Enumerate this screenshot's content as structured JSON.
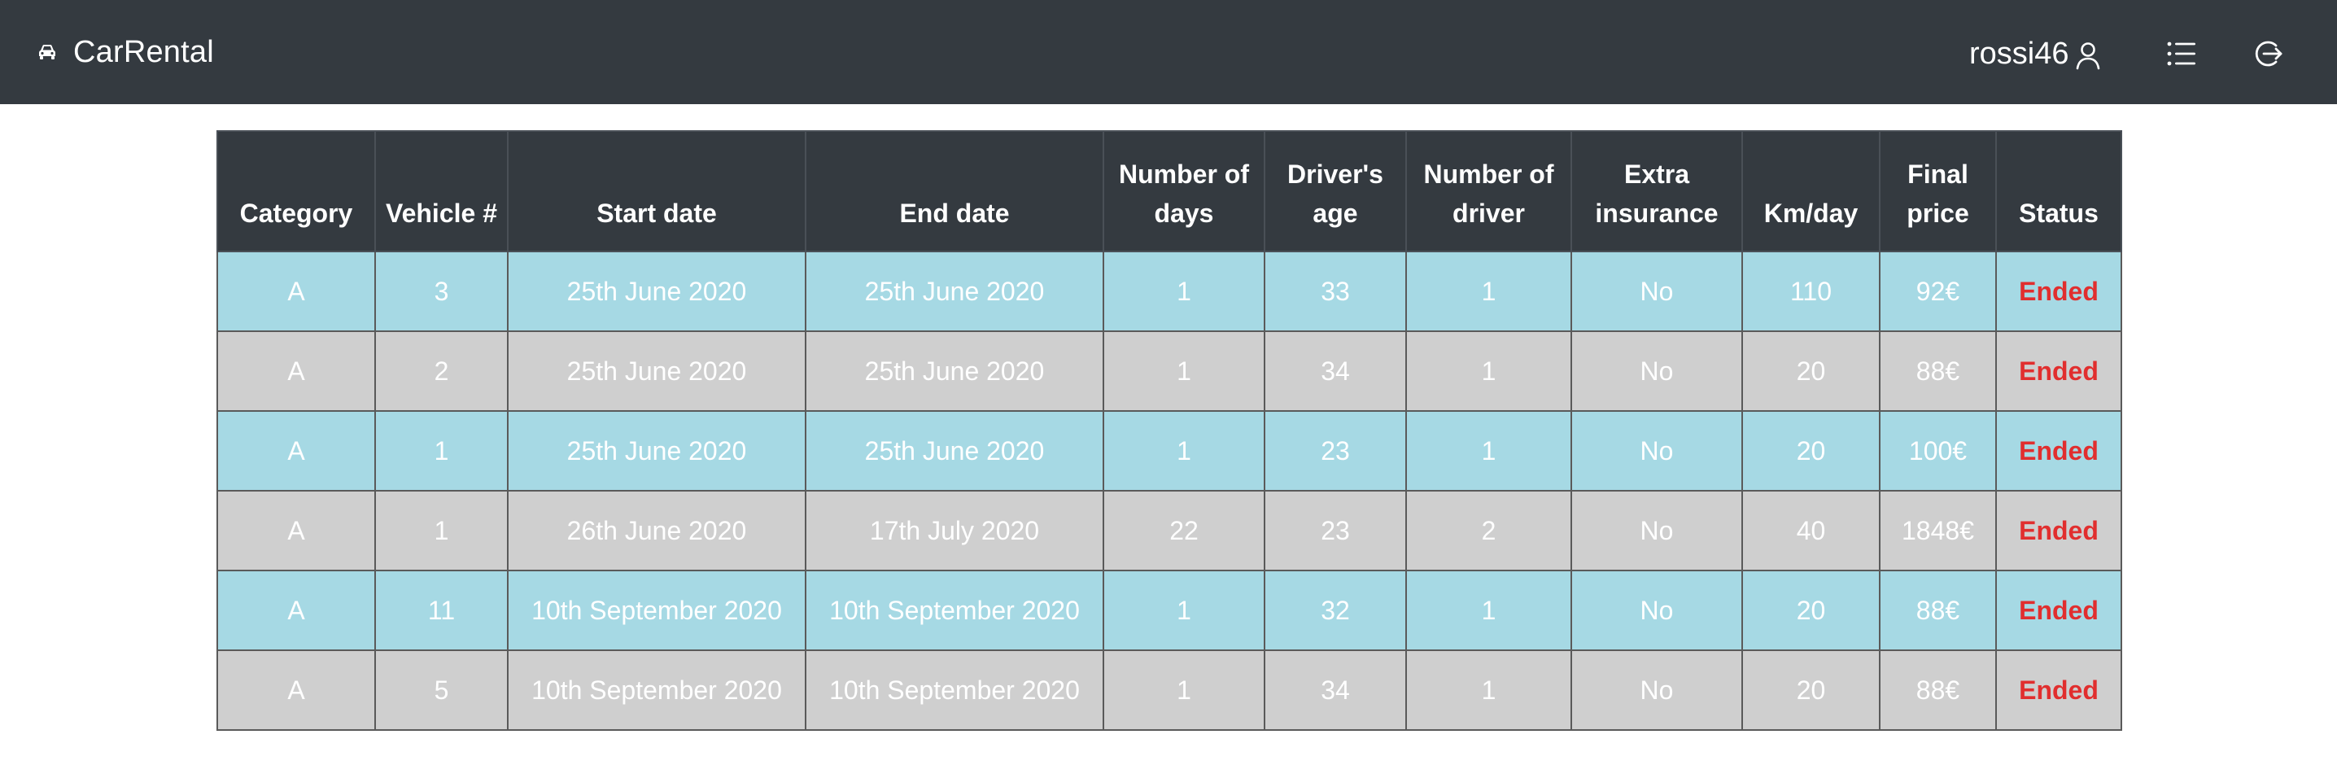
{
  "header": {
    "brand": "CarRental",
    "username": "rossi46",
    "brand_icon": "car-icon",
    "user_icon": "user-icon",
    "list_icon": "list-icon",
    "logout_icon": "logout-icon",
    "background_color": "#343a40"
  },
  "table": {
    "columns": [
      "Category",
      "Vehicle #",
      "Start date",
      "End date",
      "Number of days",
      "Driver's age",
      "Number of driver",
      "Extra insurance",
      "Km/day",
      "Final price",
      "Status"
    ],
    "rows": [
      [
        "A",
        "3",
        "25th June 2020",
        "25th June 2020",
        "1",
        "33",
        "1",
        "No",
        "110",
        "92€",
        "Ended"
      ],
      [
        "A",
        "2",
        "25th June 2020",
        "25th June 2020",
        "1",
        "34",
        "1",
        "No",
        "20",
        "88€",
        "Ended"
      ],
      [
        "A",
        "1",
        "25th June 2020",
        "25th June 2020",
        "1",
        "23",
        "1",
        "No",
        "20",
        "100€",
        "Ended"
      ],
      [
        "A",
        "1",
        "26th June 2020",
        "17th July 2020",
        "22",
        "23",
        "2",
        "No",
        "40",
        "1848€",
        "Ended"
      ],
      [
        "A",
        "11",
        "10th September 2020",
        "10th September 2020",
        "1",
        "32",
        "1",
        "No",
        "20",
        "88€",
        "Ended"
      ],
      [
        "A",
        "5",
        "10th September 2020",
        "10th September 2020",
        "1",
        "34",
        "1",
        "No",
        "20",
        "88€",
        "Ended"
      ]
    ],
    "colors": {
      "row_blue": "#a6d9e4",
      "row_gray": "#cfcfcf",
      "status_ended": "#e12e2e",
      "header_bg": "#343a40"
    }
  }
}
